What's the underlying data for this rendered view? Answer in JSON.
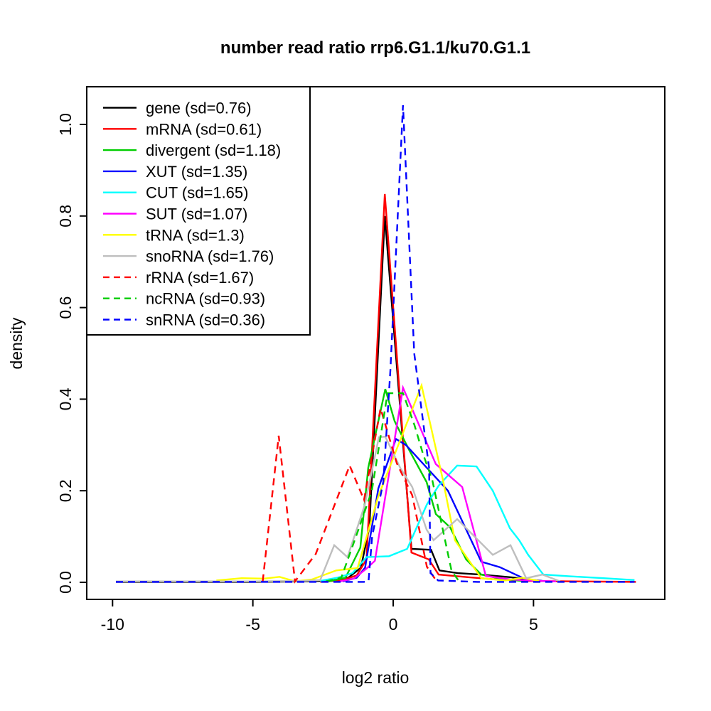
{
  "chart_data": {
    "type": "line",
    "title": "number read ratio rrp6.G1.1/ku70.G1.1",
    "xlabel": "log2 ratio",
    "ylabel": "density",
    "xlim": [
      -10.9,
      9.7
    ],
    "ylim": [
      -0.04,
      1.08
    ],
    "grid": false,
    "legend_position": "topleft",
    "x_axis": {
      "ticks": [
        -10,
        -5,
        0,
        5
      ],
      "labels": [
        "-10",
        "-5",
        "0",
        "5"
      ]
    },
    "y_axis": {
      "ticks": [
        0.0,
        0.2,
        0.4,
        0.6,
        0.8,
        1.0
      ],
      "labels": [
        "0.0",
        "0.2",
        "0.4",
        "0.6",
        "0.8",
        "1.0"
      ]
    },
    "series": [
      {
        "name": "gene",
        "label": "gene (sd=0.76)",
        "sd": 0.76,
        "color": "#000000",
        "style": "solid",
        "points": [
          [
            -9.88,
            0.001
          ],
          [
            -5.0,
            0.001
          ],
          [
            -3.0,
            0.002
          ],
          [
            -2.2,
            0.004
          ],
          [
            -1.6,
            0.01
          ],
          [
            -1.15,
            0.032
          ],
          [
            -0.85,
            0.12
          ],
          [
            -0.3,
            0.8
          ],
          [
            0.65,
            0.073
          ],
          [
            1.35,
            0.071
          ],
          [
            1.65,
            0.026
          ],
          [
            2.3,
            0.02
          ],
          [
            3.1,
            0.017
          ],
          [
            4.2,
            0.011
          ],
          [
            5.3,
            0.003
          ]
        ]
      },
      {
        "name": "mRNA",
        "label": "mRNA (sd=0.61)",
        "sd": 0.61,
        "color": "#FF0000",
        "style": "solid",
        "points": [
          [
            -2.6,
            0.001
          ],
          [
            -1.8,
            0.005
          ],
          [
            -1.3,
            0.015
          ],
          [
            -0.95,
            0.05
          ],
          [
            -0.3,
            0.848
          ],
          [
            0.65,
            0.065
          ],
          [
            1.27,
            0.05
          ],
          [
            1.62,
            0.017
          ],
          [
            2.7,
            0.011
          ],
          [
            3.7,
            0.006
          ],
          [
            4.8,
            0.003
          ],
          [
            6.5,
            0.002
          ],
          [
            8.65,
            0.001
          ]
        ]
      },
      {
        "name": "divergent",
        "label": "divergent (sd=1.18)",
        "sd": 1.18,
        "color": "#00CD00",
        "style": "solid",
        "points": [
          [
            -2.3,
            0.002
          ],
          [
            -1.7,
            0.01
          ],
          [
            -1.17,
            0.076
          ],
          [
            -0.89,
            0.25
          ],
          [
            -0.28,
            0.422
          ],
          [
            0.05,
            0.352
          ],
          [
            0.56,
            0.29
          ],
          [
            1.19,
            0.219
          ],
          [
            1.52,
            0.149
          ],
          [
            2.03,
            0.12
          ],
          [
            2.6,
            0.05
          ],
          [
            3.14,
            0.017
          ],
          [
            3.9,
            0.007
          ],
          [
            4.6,
            0.003
          ]
        ]
      },
      {
        "name": "XUT",
        "label": "XUT (sd=1.35)",
        "sd": 1.35,
        "color": "#0000FF",
        "style": "solid",
        "points": [
          [
            -1.8,
            0.002
          ],
          [
            -1.3,
            0.01
          ],
          [
            -1.0,
            0.032
          ],
          [
            -0.53,
            0.205
          ],
          [
            0.1,
            0.313
          ],
          [
            0.45,
            0.3
          ],
          [
            1.2,
            0.25
          ],
          [
            1.95,
            0.2
          ],
          [
            3.14,
            0.045
          ],
          [
            3.8,
            0.033
          ],
          [
            4.74,
            0.006
          ],
          [
            5.5,
            0.002
          ]
        ]
      },
      {
        "name": "CUT",
        "label": "CUT (sd=1.65)",
        "sd": 1.65,
        "color": "#00FFFF",
        "style": "solid",
        "points": [
          [
            -2.6,
            0.003
          ],
          [
            -2.0,
            0.01
          ],
          [
            -1.45,
            0.02
          ],
          [
            -0.95,
            0.055
          ],
          [
            -0.15,
            0.057
          ],
          [
            0.5,
            0.073
          ],
          [
            1.2,
            0.17
          ],
          [
            1.62,
            0.211
          ],
          [
            2.28,
            0.255
          ],
          [
            2.97,
            0.253
          ],
          [
            3.55,
            0.2
          ],
          [
            4.16,
            0.118
          ],
          [
            4.49,
            0.092
          ],
          [
            4.81,
            0.06
          ],
          [
            5.35,
            0.017
          ],
          [
            6.3,
            0.013
          ],
          [
            7.5,
            0.009
          ],
          [
            8.6,
            0.005
          ]
        ]
      },
      {
        "name": "SUT",
        "label": "SUT (sd=1.07)",
        "sd": 1.07,
        "color": "#FF00FF",
        "style": "solid",
        "points": [
          [
            -1.9,
            0.002
          ],
          [
            -1.4,
            0.008
          ],
          [
            -0.95,
            0.03
          ],
          [
            -0.65,
            0.047
          ],
          [
            0.35,
            0.425
          ],
          [
            1.52,
            0.258
          ],
          [
            2.46,
            0.208
          ],
          [
            3.3,
            0.014
          ],
          [
            4.2,
            0.006
          ],
          [
            5.2,
            0.003
          ],
          [
            5.8,
            0.002
          ]
        ]
      },
      {
        "name": "tRNA",
        "label": "tRNA (sd=1.3)",
        "sd": 1.3,
        "color": "#FFFF00",
        "style": "solid",
        "points": [
          [
            -6.3,
            0.004
          ],
          [
            -5.4,
            0.009
          ],
          [
            -4.6,
            0.008
          ],
          [
            -4.05,
            0.012
          ],
          [
            -3.5,
            0.002
          ],
          [
            -2.9,
            0.006
          ],
          [
            -2.03,
            0.026
          ],
          [
            -1.27,
            0.031
          ],
          [
            -0.53,
            0.188
          ],
          [
            1.01,
            0.43
          ],
          [
            1.77,
            0.224
          ],
          [
            2.2,
            0.092
          ],
          [
            3.14,
            0.009
          ],
          [
            4.0,
            0.004
          ],
          [
            4.6,
            0.01
          ],
          [
            5.2,
            0.003
          ]
        ]
      },
      {
        "name": "snoRNA",
        "label": "snoRNA (sd=1.76)",
        "sd": 1.76,
        "color": "#BEBEBE",
        "style": "solid",
        "points": [
          [
            -9.88,
            0.002
          ],
          [
            -5.0,
            0.002
          ],
          [
            -3.2,
            0.003
          ],
          [
            -2.6,
            0.005
          ],
          [
            -2.1,
            0.081
          ],
          [
            -1.63,
            0.055
          ],
          [
            -1.01,
            0.169
          ],
          [
            -0.51,
            0.317
          ],
          [
            -0.28,
            0.318
          ],
          [
            0.25,
            0.25
          ],
          [
            0.68,
            0.208
          ],
          [
            1.19,
            0.115
          ],
          [
            1.44,
            0.092
          ],
          [
            2.28,
            0.138
          ],
          [
            3.55,
            0.06
          ],
          [
            4.18,
            0.081
          ],
          [
            4.74,
            0.009
          ],
          [
            5.32,
            0.017
          ],
          [
            5.95,
            0.002
          ]
        ]
      },
      {
        "name": "rRNA",
        "label": "rRNA (sd=1.67)",
        "sd": 1.67,
        "color": "#FF0000",
        "style": "dashed",
        "points": [
          [
            -4.65,
            0.002
          ],
          [
            -4.08,
            0.32
          ],
          [
            -3.5,
            0.002
          ],
          [
            -2.76,
            0.062
          ],
          [
            -1.55,
            0.255
          ],
          [
            -1.04,
            0.18
          ],
          [
            -0.45,
            0.38
          ],
          [
            0.13,
            0.26
          ],
          [
            0.68,
            0.19
          ],
          [
            1.2,
            0.034
          ],
          [
            1.55,
            0.002
          ]
        ]
      },
      {
        "name": "ncRNA",
        "label": "ncRNA (sd=0.93)",
        "sd": 0.93,
        "color": "#00CD00",
        "style": "dashed",
        "points": [
          [
            -2.4,
            0.002
          ],
          [
            -1.85,
            0.01
          ],
          [
            -1.22,
            0.118
          ],
          [
            -0.76,
            0.2
          ],
          [
            -0.2,
            0.413
          ],
          [
            0.35,
            0.413
          ],
          [
            0.76,
            0.343
          ],
          [
            1.06,
            0.281
          ],
          [
            1.39,
            0.224
          ],
          [
            2.08,
            0.025
          ],
          [
            2.35,
            0.002
          ]
        ]
      },
      {
        "name": "snRNA",
        "label": "snRNA (sd=0.36)",
        "sd": 0.36,
        "color": "#0000FF",
        "style": "dashed",
        "points": [
          [
            -9.88,
            0.001
          ],
          [
            -1.05,
            0.001
          ],
          [
            -0.88,
            0.002
          ],
          [
            -0.75,
            0.1
          ],
          [
            -0.35,
            0.22
          ],
          [
            -0.1,
            0.464
          ],
          [
            0.35,
            1.042
          ],
          [
            0.75,
            0.5
          ],
          [
            1.28,
            0.25
          ],
          [
            1.33,
            0.02
          ],
          [
            1.6,
            0.004
          ],
          [
            3.0,
            0.001
          ],
          [
            8.6,
            0.001
          ]
        ]
      }
    ]
  }
}
